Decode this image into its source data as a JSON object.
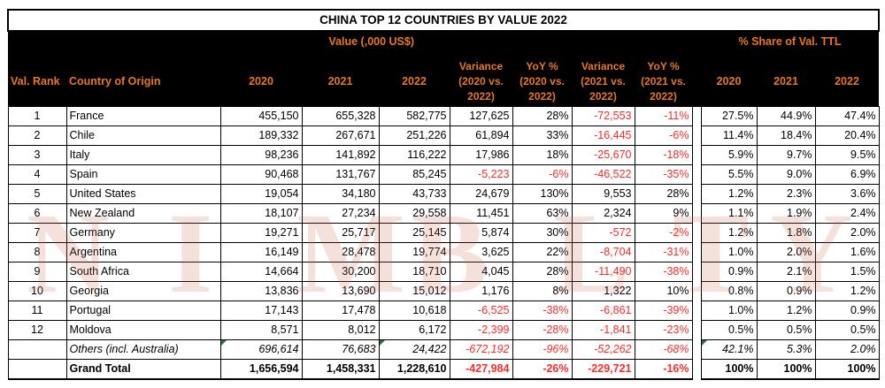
{
  "title": "CHINA TOP 12 COUNTRIES BY VALUE 2022",
  "group_headers": {
    "value": "Value (,000 US$)",
    "share": "% Share of Val.  TTL"
  },
  "columns": {
    "rank": "Val. Rank",
    "country": "Country of Origin",
    "v2020": "2020",
    "v2021": "2021",
    "v2022": "2022",
    "var1": "Variance (2020 vs. 2022)",
    "yoy1": "YoY % (2020 vs. 2022)",
    "var2": "Variance (2021 vs. 2022)",
    "yoy2": "YoY % (2021 vs. 2022)",
    "s2020": "2020",
    "s2021": "2021",
    "s2022": "2022"
  },
  "rows": [
    {
      "rank": "1",
      "country": "France",
      "v2020": "455,150",
      "v2021": "655,328",
      "v2022": "582,775",
      "var1": "127,625",
      "yoy1": "28%",
      "var2": "-72,553",
      "yoy2": "-11%",
      "s2020": "27.5%",
      "s2021": "44.9%",
      "s2022": "47.4%"
    },
    {
      "rank": "2",
      "country": "Chile",
      "v2020": "189,332",
      "v2021": "267,671",
      "v2022": "251,226",
      "var1": "61,894",
      "yoy1": "33%",
      "var2": "-16,445",
      "yoy2": "-6%",
      "s2020": "11.4%",
      "s2021": "18.4%",
      "s2022": "20.4%"
    },
    {
      "rank": "3",
      "country": "Italy",
      "v2020": "98,236",
      "v2021": "141,892",
      "v2022": "116,222",
      "var1": "17,986",
      "yoy1": "18%",
      "var2": "-25,670",
      "yoy2": "-18%",
      "s2020": "5.9%",
      "s2021": "9.7%",
      "s2022": "9.5%"
    },
    {
      "rank": "4",
      "country": "Spain",
      "v2020": "90,468",
      "v2021": "131,767",
      "v2022": "85,245",
      "var1": "-5,223",
      "yoy1": "-6%",
      "var2": "-46,522",
      "yoy2": "-35%",
      "s2020": "5.5%",
      "s2021": "9.0%",
      "s2022": "6.9%"
    },
    {
      "rank": "5",
      "country": "United States",
      "v2020": "19,054",
      "v2021": "34,180",
      "v2022": "43,733",
      "var1": "24,679",
      "yoy1": "130%",
      "var2": "9,553",
      "yoy2": "28%",
      "s2020": "1.2%",
      "s2021": "2.3%",
      "s2022": "3.6%"
    },
    {
      "rank": "6",
      "country": "New Zealand",
      "v2020": "18,107",
      "v2021": "27,234",
      "v2022": "29,558",
      "var1": "11,451",
      "yoy1": "63%",
      "var2": "2,324",
      "yoy2": "9%",
      "s2020": "1.1%",
      "s2021": "1.9%",
      "s2022": "2.4%"
    },
    {
      "rank": "7",
      "country": "Germany",
      "v2020": "19,271",
      "v2021": "25,717",
      "v2022": "25,145",
      "var1": "5,874",
      "yoy1": "30%",
      "var2": "-572",
      "yoy2": "-2%",
      "s2020": "1.2%",
      "s2021": "1.8%",
      "s2022": "2.0%"
    },
    {
      "rank": "8",
      "country": "Argentina",
      "v2020": "16,149",
      "v2021": "28,478",
      "v2022": "19,774",
      "var1": "3,625",
      "yoy1": "22%",
      "var2": "-8,704",
      "yoy2": "-31%",
      "s2020": "1.0%",
      "s2021": "2.0%",
      "s2022": "1.6%"
    },
    {
      "rank": "9",
      "country": "South Africa",
      "v2020": "14,664",
      "v2021": "30,200",
      "v2022": "18,710",
      "var1": "4,045",
      "yoy1": "28%",
      "var2": "-11,490",
      "yoy2": "-38%",
      "s2020": "0.9%",
      "s2021": "2.1%",
      "s2022": "1.5%"
    },
    {
      "rank": "10",
      "country": "Georgia",
      "v2020": "13,836",
      "v2021": "13,690",
      "v2022": "15,012",
      "var1": "1,176",
      "yoy1": "8%",
      "var2": "1,322",
      "yoy2": "10%",
      "s2020": "0.8%",
      "s2021": "0.9%",
      "s2022": "1.2%"
    },
    {
      "rank": "11",
      "country": "Portugal",
      "v2020": "17,143",
      "v2021": "17,478",
      "v2022": "10,618",
      "var1": "-6,525",
      "yoy1": "-38%",
      "var2": "-6,861",
      "yoy2": "-39%",
      "s2020": "1.0%",
      "s2021": "1.2%",
      "s2022": "0.9%"
    },
    {
      "rank": "12",
      "country": "Moldova",
      "v2020": "8,571",
      "v2021": "8,012",
      "v2022": "6,172",
      "var1": "-2,399",
      "yoy1": "-28%",
      "var2": "-1,841",
      "yoy2": "-23%",
      "s2020": "0.5%",
      "s2021": "0.5%",
      "s2022": "0.5%"
    }
  ],
  "others": {
    "rank": "",
    "country": "Others (incl. Australia)",
    "v2020": "696,614",
    "v2021": "76,683",
    "v2022": "24,422",
    "var1": "-672,192",
    "yoy1": "-96%",
    "var2": "-52,262",
    "yoy2": "-68%",
    "s2020": "42.1%",
    "s2021": "5.3%",
    "s2022": "2.0%"
  },
  "total": {
    "rank": "",
    "country": "Grand Total",
    "v2020": "1,656,594",
    "v2021": "1,458,331",
    "v2022": "1,228,610",
    "var1": "-427,984",
    "yoy1": "-26%",
    "var2": "-229,721",
    "yoy2": "-16%",
    "s2020": "100%",
    "s2021": "100%",
    "s2022": "100%"
  },
  "watermark": [
    "N",
    "I",
    "M",
    "B",
    "L",
    "T",
    "Y"
  ],
  "colors": {
    "header_bg": "#000000",
    "header_text": "#e87722",
    "negative": "#ff2a2a",
    "watermark": "#cd6950"
  }
}
